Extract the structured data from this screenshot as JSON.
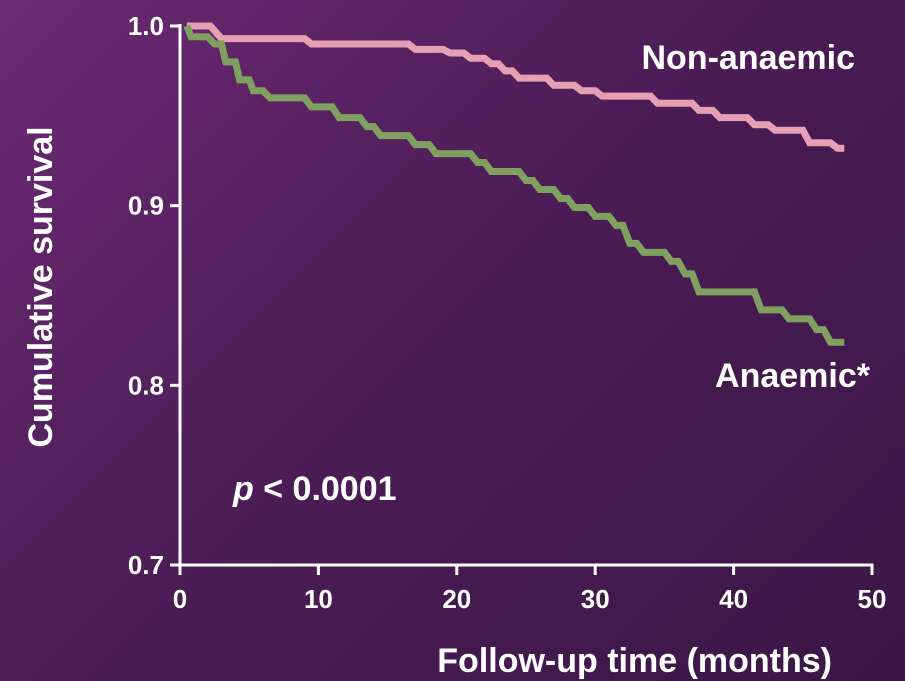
{
  "chart_data": {
    "type": "line",
    "subtype": "kaplan-meier step",
    "xlabel": "Follow-up time (months)",
    "ylabel": "Cumulative survival",
    "xlim": [
      0,
      50
    ],
    "ylim": [
      0.7,
      1.0
    ],
    "x_ticks": [
      "0",
      "10",
      "20",
      "30",
      "40",
      "50"
    ],
    "y_ticks": [
      "0.7",
      "0.8",
      "0.9",
      "1.0"
    ],
    "annotation_p_italic": "p",
    "annotation_p_rest": " < 0.0001",
    "grid": false,
    "colors": {
      "Non-anaemic": "#e6a0b4",
      "Anaemic*": "#7fa05e",
      "axis": "#ffffff"
    },
    "series": [
      {
        "name": "Non-anaemic",
        "points": [
          [
            0.5,
            1.0
          ],
          [
            2.2,
            1.0
          ],
          [
            3.0,
            0.993
          ],
          [
            9.0,
            0.993
          ],
          [
            9.5,
            0.99
          ],
          [
            16.5,
            0.99
          ],
          [
            17.0,
            0.987
          ],
          [
            19.0,
            0.987
          ],
          [
            19.5,
            0.985
          ],
          [
            20.5,
            0.985
          ],
          [
            21.0,
            0.982
          ],
          [
            22.0,
            0.982
          ],
          [
            22.5,
            0.979
          ],
          [
            23.0,
            0.979
          ],
          [
            23.5,
            0.975
          ],
          [
            24.0,
            0.975
          ],
          [
            24.5,
            0.971
          ],
          [
            26.5,
            0.971
          ],
          [
            27.0,
            0.967
          ],
          [
            28.5,
            0.967
          ],
          [
            29.0,
            0.964
          ],
          [
            30.0,
            0.964
          ],
          [
            30.5,
            0.961
          ],
          [
            34.0,
            0.961
          ],
          [
            34.5,
            0.957
          ],
          [
            37.0,
            0.957
          ],
          [
            37.5,
            0.953
          ],
          [
            38.5,
            0.953
          ],
          [
            39.0,
            0.949
          ],
          [
            41.0,
            0.949
          ],
          [
            41.5,
            0.945
          ],
          [
            42.5,
            0.945
          ],
          [
            43.0,
            0.942
          ],
          [
            45.0,
            0.942
          ],
          [
            45.5,
            0.935
          ],
          [
            47.0,
            0.935
          ],
          [
            47.5,
            0.932
          ],
          [
            48.0,
            0.932
          ]
        ]
      },
      {
        "name": "Anaemic*",
        "points": [
          [
            0.5,
            1.0
          ],
          [
            0.8,
            0.994
          ],
          [
            2.0,
            0.994
          ],
          [
            2.5,
            0.99
          ],
          [
            3.0,
            0.99
          ],
          [
            3.3,
            0.98
          ],
          [
            4.0,
            0.98
          ],
          [
            4.3,
            0.97
          ],
          [
            5.0,
            0.97
          ],
          [
            5.3,
            0.964
          ],
          [
            6.0,
            0.964
          ],
          [
            6.5,
            0.96
          ],
          [
            9.0,
            0.96
          ],
          [
            9.5,
            0.955
          ],
          [
            11.0,
            0.955
          ],
          [
            11.5,
            0.949
          ],
          [
            13.0,
            0.949
          ],
          [
            13.5,
            0.944
          ],
          [
            14.0,
            0.944
          ],
          [
            14.5,
            0.939
          ],
          [
            16.5,
            0.939
          ],
          [
            17.0,
            0.934
          ],
          [
            18.0,
            0.934
          ],
          [
            18.5,
            0.929
          ],
          [
            21.0,
            0.929
          ],
          [
            21.5,
            0.924
          ],
          [
            22.0,
            0.924
          ],
          [
            22.5,
            0.919
          ],
          [
            24.5,
            0.919
          ],
          [
            25.0,
            0.914
          ],
          [
            25.5,
            0.914
          ],
          [
            26.0,
            0.909
          ],
          [
            27.0,
            0.909
          ],
          [
            27.5,
            0.904
          ],
          [
            28.0,
            0.904
          ],
          [
            28.5,
            0.899
          ],
          [
            29.5,
            0.899
          ],
          [
            30.0,
            0.894
          ],
          [
            31.0,
            0.894
          ],
          [
            31.5,
            0.889
          ],
          [
            32.0,
            0.889
          ],
          [
            32.5,
            0.879
          ],
          [
            33.0,
            0.879
          ],
          [
            33.5,
            0.874
          ],
          [
            35.0,
            0.874
          ],
          [
            35.5,
            0.869
          ],
          [
            36.0,
            0.869
          ],
          [
            36.5,
            0.862
          ],
          [
            37.0,
            0.862
          ],
          [
            37.5,
            0.852
          ],
          [
            41.5,
            0.852
          ],
          [
            42.0,
            0.842
          ],
          [
            43.5,
            0.842
          ],
          [
            44.0,
            0.837
          ],
          [
            45.5,
            0.837
          ],
          [
            46.0,
            0.831
          ],
          [
            46.5,
            0.831
          ],
          [
            47.0,
            0.824
          ],
          [
            48.0,
            0.824
          ]
        ]
      }
    ]
  }
}
